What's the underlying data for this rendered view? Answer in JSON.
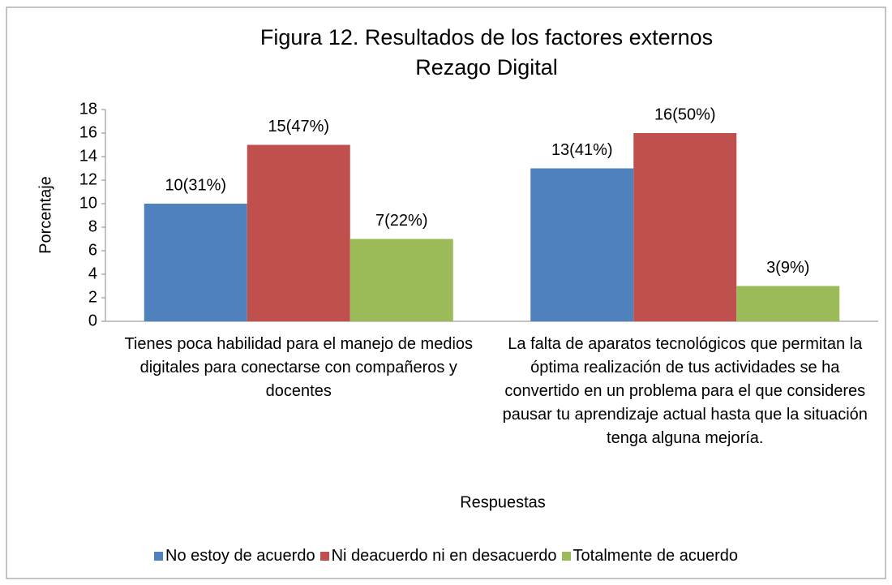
{
  "chart_data": {
    "type": "bar",
    "title": [
      "Figura 12. Resultados de los factores externos",
      "Rezago Digital"
    ],
    "y_label": "Porcentaje",
    "x_label": "Respuestas",
    "categories": [
      "Tienes poca habilidad para el manejo de medios digitales para conectarse con compañeros y docentes",
      "La falta de aparatos tecnológicos que permitan la óptima realización de tus actividades se ha convertido en un problema para el que consideres pausar tu aprendizaje actual hasta que la situación tenga alguna mejoría."
    ],
    "series": [
      {
        "name": "No estoy de acuerdo",
        "color": "#4f81bd",
        "values": [
          10,
          13
        ],
        "value_labels": [
          "10(31%)",
          "13(41%)"
        ]
      },
      {
        "name": "Ni deacuerdo ni en desacuerdo",
        "color": "#c0504d",
        "values": [
          15,
          16
        ],
        "value_labels": [
          "15(47%)",
          "16(50%)"
        ]
      },
      {
        "name": "Totalmente de acuerdo",
        "color": "#9bbb59",
        "values": [
          7,
          3
        ],
        "value_labels": [
          "7(22%)",
          "3(9%)"
        ]
      }
    ],
    "ylim": [
      0,
      18
    ],
    "yticks": [
      0,
      2,
      4,
      6,
      8,
      10,
      12,
      14,
      16,
      18
    ],
    "grid": false,
    "legend": "bottom"
  }
}
